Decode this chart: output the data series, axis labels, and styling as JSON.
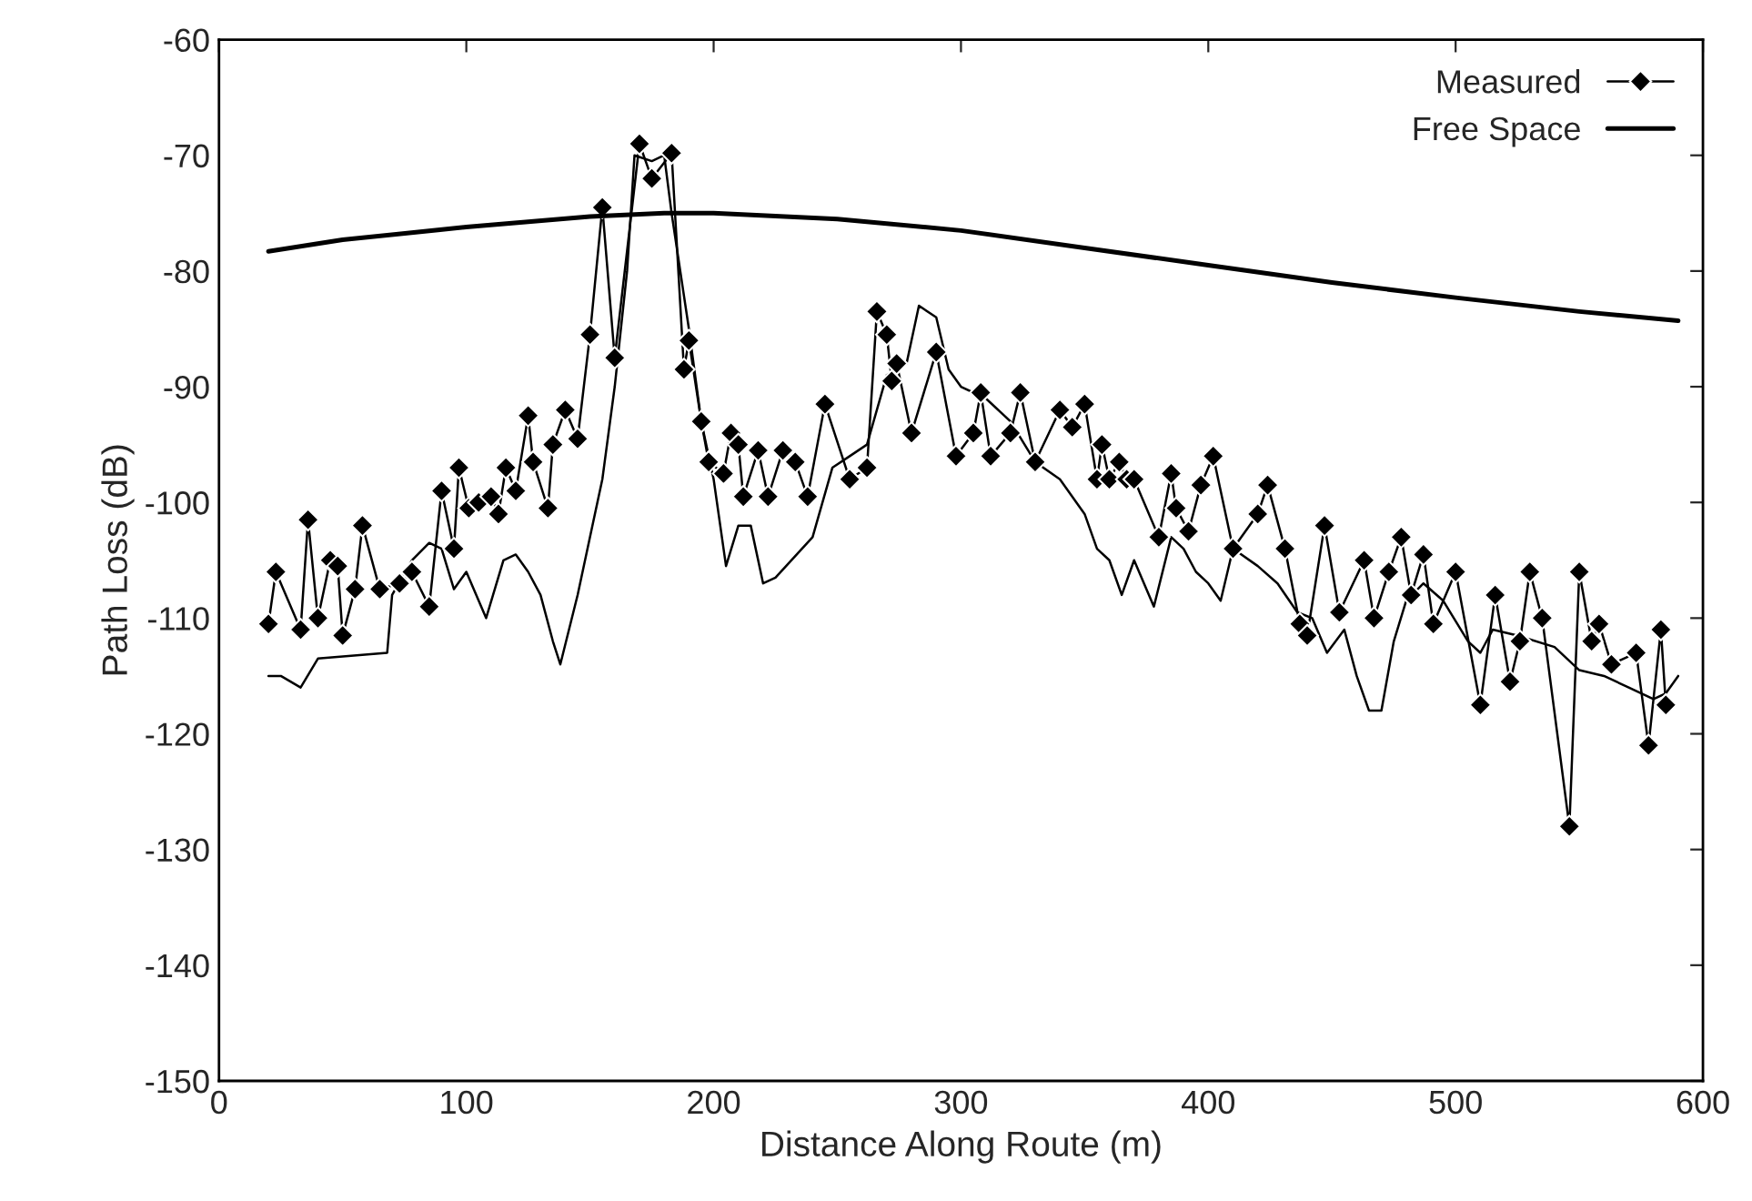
{
  "chart_data": {
    "type": "line",
    "xlabel": "Distance Along Route (m)",
    "ylabel": "Path Loss (dB)",
    "xlim": [
      0,
      600
    ],
    "xticks": [
      0,
      100,
      200,
      300,
      400,
      500,
      600
    ],
    "ylim": [
      -150,
      -60
    ],
    "yticks": [
      -150,
      -140,
      -130,
      -120,
      -110,
      -100,
      -90,
      -80,
      -70,
      -60
    ],
    "grid": false,
    "legend": "top right",
    "series": [
      {
        "color": "#000000",
        "marker": "none",
        "x": [
          20,
          25,
          33,
          40,
          68,
          70,
          78,
          85,
          90,
          95,
          100,
          108,
          115,
          120,
          125,
          130,
          135,
          138,
          145,
          150,
          155,
          160,
          165,
          168,
          175,
          180,
          183,
          190,
          195,
          200,
          205,
          210,
          215,
          220,
          225,
          240,
          248,
          255,
          262,
          270,
          278,
          283,
          290,
          295,
          300,
          310,
          320,
          330,
          340,
          350,
          355,
          360,
          365,
          370,
          378,
          385,
          390,
          395,
          400,
          405,
          410,
          420,
          428,
          436,
          442,
          448,
          455,
          460,
          465,
          470,
          475,
          480,
          487,
          495,
          505,
          510,
          515,
          525,
          540,
          550,
          560,
          570,
          580,
          585,
          590
        ],
        "values": [
          -115,
          -115,
          -116,
          -113.5,
          -113,
          -108,
          -105,
          -103.5,
          -104,
          -107.5,
          -106,
          -110,
          -105,
          -104.5,
          -106,
          -108,
          -112,
          -114,
          -108,
          -103,
          -98,
          -90,
          -80,
          -70,
          -70.5,
          -70,
          -75,
          -85,
          -93,
          -98,
          -105.5,
          -102,
          -102,
          -107,
          -106.5,
          -103,
          -97,
          -96,
          -95,
          -89,
          -88,
          -83,
          -84,
          -88.5,
          -90,
          -91,
          -93,
          -96.5,
          -98,
          -101,
          -104,
          -105,
          -108,
          -105,
          -109,
          -103,
          -104,
          -106,
          -107,
          -108.5,
          -104,
          -105.5,
          -107,
          -109.5,
          -110,
          -113,
          -111,
          -115,
          -118,
          -118,
          -112,
          -108.5,
          -107,
          -108.5,
          -112,
          -113,
          -111,
          -111.5,
          -112.5,
          -114.5,
          -115,
          -116,
          -117,
          -116.5,
          -115
        ]
      },
      {
        "name": "Measured",
        "color": "#000000",
        "marker": "diamond",
        "x": [
          20,
          23,
          33,
          36,
          40,
          45,
          48,
          50,
          55,
          58,
          65,
          73,
          78,
          85,
          90,
          95,
          97,
          101,
          105,
          110,
          113,
          116,
          120,
          125,
          127,
          133,
          135,
          140,
          145,
          150,
          155,
          160,
          170,
          175,
          183,
          188,
          190,
          195,
          198,
          204,
          207,
          210,
          212,
          218,
          222,
          228,
          233,
          238,
          245,
          255,
          262,
          266,
          270,
          272,
          274,
          280,
          290,
          298,
          305,
          308,
          312,
          320,
          324,
          330,
          340,
          345,
          350,
          355,
          357,
          360,
          364,
          367,
          370,
          380,
          385,
          387,
          392,
          397,
          402,
          410,
          420,
          424,
          431,
          437,
          440,
          447,
          453,
          463,
          467,
          473,
          478,
          482,
          487,
          491,
          500,
          510,
          516,
          522,
          526,
          530,
          535,
          546,
          550,
          555,
          558,
          563,
          573,
          578,
          583,
          585
        ],
        "values": [
          -110.5,
          -106,
          -111,
          -101.5,
          -110,
          -105,
          -105.5,
          -111.5,
          -107.5,
          -102,
          -107.5,
          -107,
          -106,
          -109,
          -99,
          -104,
          -97,
          -100.5,
          -100,
          -99.5,
          -101,
          -97,
          -99,
          -92.5,
          -96.5,
          -100.5,
          -95,
          -92,
          -94.5,
          -85.5,
          -74.5,
          -87.5,
          -69,
          -72,
          -69.8,
          -88.5,
          -86,
          -93,
          -96.5,
          -97.5,
          -94,
          -95,
          -99.5,
          -95.5,
          -99.5,
          -95.5,
          -96.5,
          -99.5,
          -91.5,
          -98,
          -97,
          -83.5,
          -85.5,
          -89.5,
          -88,
          -94,
          -87,
          -96,
          -94,
          -90.5,
          -96,
          -94,
          -90.5,
          -96.5,
          -92,
          -93.5,
          -91.5,
          -98,
          -95,
          -98,
          -96.5,
          -98,
          -98,
          -103,
          -97.5,
          -100.5,
          -102.5,
          -98.5,
          -96,
          -104,
          -101,
          -98.5,
          -104,
          -110.5,
          -111.5,
          -102,
          -109.5,
          -105,
          -110,
          -106,
          -103,
          -108,
          -104.5,
          -110.5,
          -106,
          -117.5,
          -108,
          -115.5,
          -112,
          -106,
          -110,
          -128,
          -106,
          -112,
          -110.5,
          -114,
          -113,
          -121,
          -111,
          -117.5
        ]
      },
      {
        "name": "Free Space",
        "color": "#000000",
        "marker": "none",
        "x": [
          20,
          50,
          100,
          150,
          180,
          200,
          250,
          300,
          350,
          400,
          450,
          500,
          550,
          590
        ],
        "values": [
          -78.3,
          -77.3,
          -76.2,
          -75.3,
          -75,
          -75,
          -75.5,
          -76.5,
          -78,
          -79.5,
          -81,
          -82.3,
          -83.5,
          -84.3
        ]
      }
    ]
  }
}
